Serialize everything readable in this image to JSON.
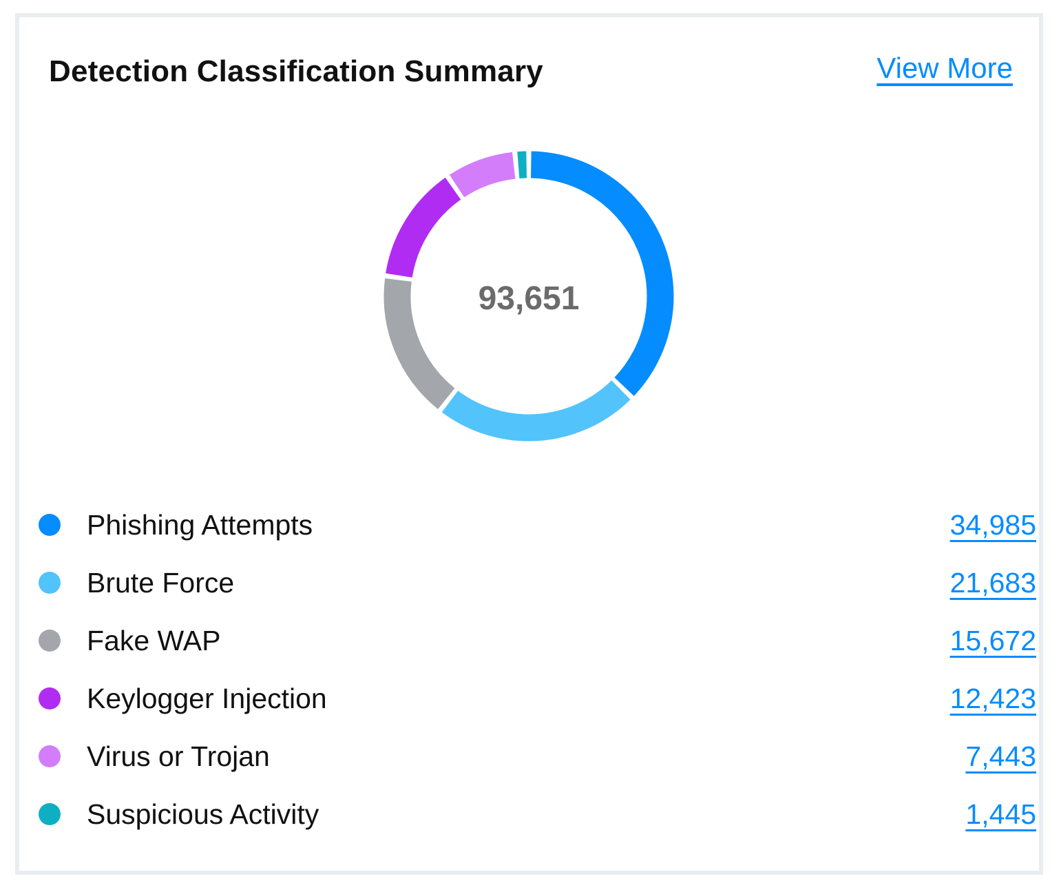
{
  "card": {
    "title": "Detection Classification Summary",
    "view_more_label": "View More"
  },
  "chart_data": {
    "type": "pie",
    "variant": "donut",
    "center_label": "93,651",
    "total": 93651,
    "categories": [
      "Phishing Attempts",
      "Brute Force",
      "Fake WAP",
      "Keylogger Injection",
      "Virus or Trojan",
      "Suspicious Activity"
    ],
    "values": [
      34985,
      21683,
      15672,
      12423,
      7443,
      1445
    ],
    "value_labels": [
      "34,985",
      "21,683",
      "15,672",
      "12,423",
      "7,443",
      "1,445"
    ],
    "colors": [
      "#058cff",
      "#52c3fb",
      "#a3a6ab",
      "#b12cf3",
      "#d37dfb",
      "#0eafc2"
    ],
    "legend_position": "bottom"
  }
}
